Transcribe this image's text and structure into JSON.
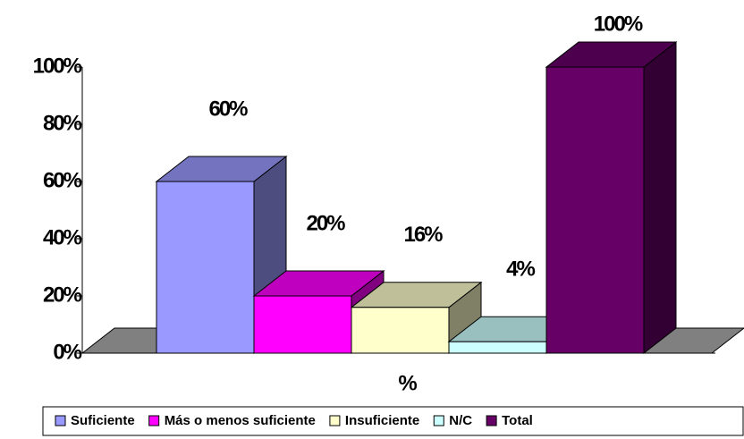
{
  "chart_data": {
    "type": "bar3d",
    "categories": [
      "%"
    ],
    "series": [
      {
        "name": "Suficiente",
        "color": "#9999ff",
        "values": [
          60
        ],
        "value_labels": [
          "60%"
        ]
      },
      {
        "name": "Más o menos suficiente",
        "color": "#ff00ff",
        "values": [
          20
        ],
        "value_labels": [
          "20%"
        ]
      },
      {
        "name": "Insuficiente",
        "color": "#ffffcc",
        "values": [
          16
        ],
        "value_labels": [
          "16%"
        ]
      },
      {
        "name": "N/C",
        "color": "#ccffff",
        "values": [
          4
        ],
        "value_labels": [
          "4%"
        ]
      },
      {
        "name": "Total",
        "color": "#660066",
        "values": [
          100
        ],
        "value_labels": [
          "100%"
        ]
      }
    ],
    "ylim": [
      0,
      100
    ],
    "yticks": [
      {
        "value": 0,
        "label": "0%"
      },
      {
        "value": 20,
        "label": "20%"
      },
      {
        "value": 40,
        "label": "40%"
      },
      {
        "value": 60,
        "label": "60%"
      },
      {
        "value": 80,
        "label": "80%"
      },
      {
        "value": 100,
        "label": "100%"
      }
    ],
    "legend": "bottom"
  }
}
